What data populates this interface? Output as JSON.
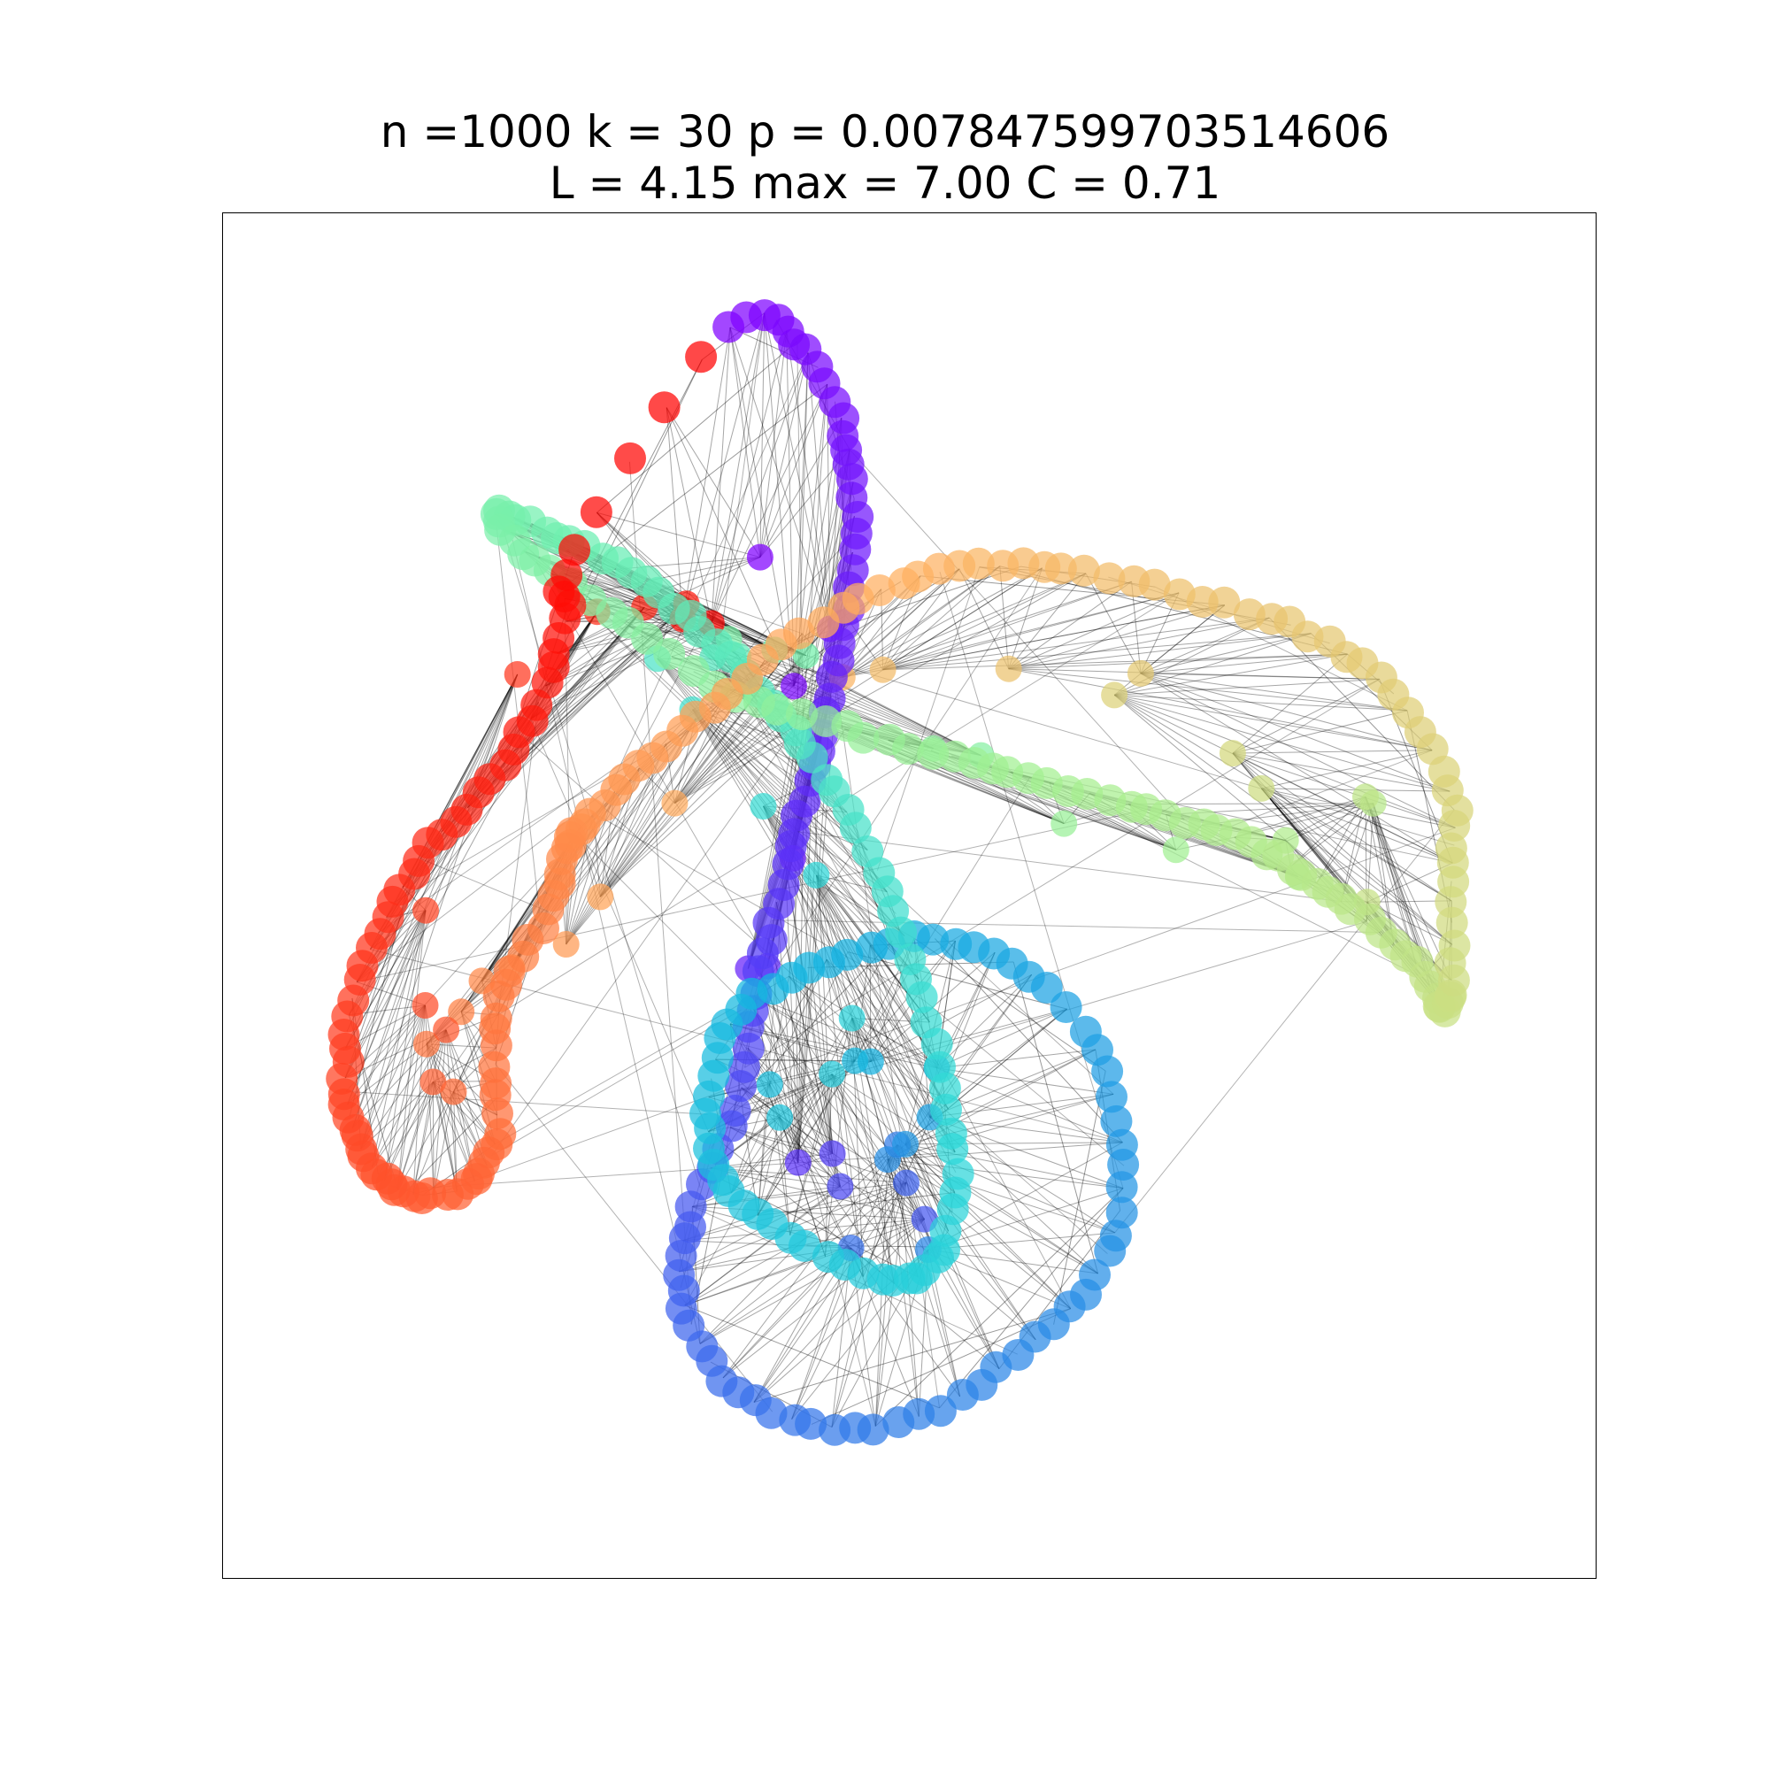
{
  "title": {
    "line1": "n =1000 k = 30 p = 0.007847599703514606",
    "line2": "L = 4.15 max = 7.00 C = 0.71"
  },
  "graph": {
    "type": "network",
    "node_count": 1000,
    "color_ramp": [
      "#8000ff",
      "#5a32f8",
      "#2f7ee8",
      "#12b4e0",
      "#2ed8d8",
      "#6ef0b0",
      "#a4f090",
      "#d0dc80",
      "#ffb060",
      "#ff7a40",
      "#ff3c20",
      "#ff0000"
    ],
    "edge_color": "#000000"
  }
}
